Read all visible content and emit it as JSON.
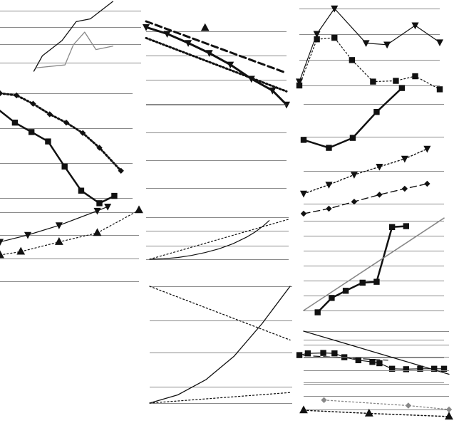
{
  "colors": {
    "background": "#ffffff",
    "gridline": "#8a8a8a",
    "ink": "#111111",
    "gray": "#888888"
  },
  "chart_data": [
    {
      "id": "p1",
      "type": "line",
      "grid": true,
      "ylim": [
        0,
        100
      ],
      "xlim": [
        0,
        5
      ],
      "gridlines": [
        12,
        39,
        63,
        87
      ],
      "series": [
        {
          "style": "solid",
          "color": "#111111",
          "width": 1.3,
          "marker": "none",
          "points": [
            [
              1.2,
              0
            ],
            [
              1.5,
              22
            ],
            [
              2.2,
              44
            ],
            [
              2.7,
              71
            ],
            [
              3.2,
              75
            ],
            [
              4.0,
              100
            ]
          ]
        },
        {
          "style": "solid",
          "color": "#888888",
          "width": 1.3,
          "marker": "none",
          "points": [
            [
              1.3,
              5
            ],
            [
              2.3,
              9
            ],
            [
              2.6,
              38
            ],
            [
              3.0,
              56
            ],
            [
              3.4,
              31
            ],
            [
              4.0,
              36
            ]
          ]
        }
      ]
    },
    {
      "id": "p2",
      "type": "line",
      "grid": true,
      "ylim": [
        0,
        100
      ],
      "xlim": [
        0,
        10
      ],
      "gridlines": [
        88,
        59,
        30,
        1
      ],
      "series": [
        {
          "style": "dashed",
          "color": "#111111",
          "width": 3,
          "marker": "none",
          "points": [
            [
              0,
              100
            ],
            [
              10,
              38
            ]
          ]
        },
        {
          "style": "solid",
          "color": "#111111",
          "width": 3,
          "marker": "triangle-down",
          "points": [
            [
              0,
              93
            ],
            [
              1.5,
              85
            ],
            [
              3,
              74
            ],
            [
              4.5,
              62
            ],
            [
              6,
              48
            ],
            [
              7.5,
              31
            ],
            [
              9,
              17
            ],
            [
              10,
              0
            ]
          ]
        },
        {
          "style": "dotted",
          "color": "#111111",
          "width": 3,
          "marker": "none",
          "points": [
            [
              0,
              80
            ],
            [
              10,
              16
            ]
          ]
        },
        {
          "style": "none",
          "color": "#111111",
          "width": 1,
          "marker": "triangle",
          "points": [
            [
              4.2,
              92
            ]
          ]
        }
      ]
    },
    {
      "id": "p3",
      "type": "line",
      "grid": true,
      "ylim": [
        0,
        100
      ],
      "xlim": [
        0,
        8
      ],
      "gridlines": [
        100,
        67,
        33,
        0
      ],
      "series": [
        {
          "style": "solid",
          "color": "#111111",
          "width": 1.2,
          "marker": "triangle-down",
          "points": [
            [
              0,
              5
            ],
            [
              1,
              67
            ],
            [
              2,
              100
            ],
            [
              3.8,
              55
            ],
            [
              5,
              53
            ],
            [
              6.6,
              78
            ],
            [
              8,
              56
            ]
          ]
        },
        {
          "style": "dotted",
          "color": "#111111",
          "width": 1.2,
          "marker": "square",
          "points": [
            [
              0,
              0
            ],
            [
              1,
              60
            ],
            [
              2,
              62
            ],
            [
              3,
              33
            ],
            [
              4.2,
              5
            ],
            [
              5.5,
              6
            ],
            [
              6.6,
              12
            ],
            [
              8,
              -5
            ]
          ]
        }
      ]
    },
    {
      "id": "p4",
      "type": "line",
      "grid": true,
      "ylim": [
        0,
        100
      ],
      "xlim": [
        0,
        8
      ],
      "gridlines": [
        100,
        67,
        33,
        0
      ],
      "series": [
        {
          "style": "dotted",
          "color": "#111111",
          "width": 3,
          "marker": "diamond",
          "points": [
            [
              0,
              100
            ],
            [
              1,
              98
            ],
            [
              2,
              90
            ],
            [
              3,
              80
            ],
            [
              4,
              72
            ],
            [
              5,
              62
            ],
            [
              6,
              48
            ],
            [
              7.3,
              26
            ]
          ]
        },
        {
          "style": "solid",
          "color": "#111111",
          "width": 2.5,
          "marker": "square",
          "points": [
            [
              -0.3,
              87
            ],
            [
              0.9,
              72
            ],
            [
              1.9,
              63
            ],
            [
              2.9,
              54
            ],
            [
              3.9,
              30
            ],
            [
              4.9,
              7
            ],
            [
              6,
              -5
            ],
            [
              6.9,
              2
            ]
          ]
        }
      ]
    },
    {
      "id": "p5",
      "type": "line",
      "grid": true,
      "ylim": [
        0,
        100
      ],
      "xlim": [
        0,
        10
      ],
      "gridlines": [
        100,
        67,
        33,
        0
      ],
      "series": []
    },
    {
      "id": "p6",
      "type": "line",
      "grid": true,
      "ylim": [
        0,
        100
      ],
      "xlim": [
        0,
        10
      ],
      "gridlines": [
        100,
        67,
        33,
        0
      ],
      "series": [
        {
          "style": "solid",
          "color": "#111111",
          "width": 2.5,
          "marker": "square",
          "points": [
            [
              0,
              64
            ],
            [
              1.8,
              56
            ],
            [
              3.5,
              66
            ],
            [
              5.2,
              92
            ],
            [
              7,
              116
            ]
          ]
        },
        {
          "style": "dotted",
          "color": "#111111",
          "width": 1.4,
          "marker": "triangle-down",
          "points": [
            [
              0,
              10
            ],
            [
              1.8,
              19
            ],
            [
              3.6,
              29
            ],
            [
              5.4,
              37
            ],
            [
              7.2,
              45
            ],
            [
              8.8,
              55
            ]
          ]
        },
        {
          "style": "dashed",
          "color": "#111111",
          "width": 1.4,
          "marker": "diamond",
          "points": [
            [
              0,
              -10
            ],
            [
              1.8,
              -5
            ],
            [
              3.6,
              2
            ],
            [
              5.4,
              9
            ],
            [
              7.2,
              15
            ],
            [
              8.8,
              20
            ]
          ]
        }
      ]
    },
    {
      "id": "p7",
      "type": "line",
      "grid": true,
      "ylim": [
        0,
        100
      ],
      "xlim": [
        0,
        8
      ],
      "gridlines": [
        0,
        33,
        67,
        100
      ],
      "series": [
        {
          "style": "solid",
          "color": "#111111",
          "width": 1.2,
          "marker": "triangle-down",
          "points": [
            [
              0,
              57
            ],
            [
              1.6,
              67
            ],
            [
              3.4,
              81
            ],
            [
              5.6,
              102
            ],
            [
              6.2,
              108
            ]
          ]
        },
        {
          "style": "dotted",
          "color": "#111111",
          "width": 1.2,
          "marker": "triangle",
          "points": [
            [
              0,
              38
            ],
            [
              1.2,
              43
            ],
            [
              3.4,
              57
            ],
            [
              5.6,
              70
            ],
            [
              8,
              103
            ]
          ]
        }
      ]
    },
    {
      "id": "p8",
      "type": "line",
      "grid": true,
      "ylim": [
        0,
        100
      ],
      "xlim": [
        0,
        10
      ],
      "gridlines": [
        100,
        67,
        33,
        0
      ],
      "series": [
        {
          "style": "solid",
          "color": "#111111",
          "width": 1.2,
          "marker": "none",
          "points": [
            [
              0,
              0
            ],
            [
              1,
              1
            ],
            [
              2,
              4
            ],
            [
              3,
              9
            ],
            [
              4,
              16
            ],
            [
              5,
              25
            ],
            [
              6,
              37
            ],
            [
              7,
              53
            ],
            [
              7.6,
              65
            ],
            [
              8.2,
              80
            ],
            [
              8.6,
              92
            ]
          ]
        },
        {
          "style": "dotted",
          "color": "#111111",
          "width": 1.2,
          "marker": "none",
          "points": [
            [
              0,
              0
            ],
            [
              10,
              95
            ]
          ]
        }
      ]
    },
    {
      "id": "p9",
      "type": "line",
      "grid": true,
      "ylim": [
        0,
        100
      ],
      "xlim": [
        0,
        10
      ],
      "gridlines": [
        100,
        83,
        67,
        50,
        33,
        17,
        0
      ],
      "series": [
        {
          "style": "solid",
          "color": "#111111",
          "width": 2.5,
          "marker": "square",
          "points": [
            [
              1,
              -2
            ],
            [
              2,
              14
            ],
            [
              3,
              22
            ],
            [
              4.2,
              31
            ],
            [
              5.2,
              32
            ],
            [
              6.3,
              93
            ],
            [
              7.3,
              94
            ]
          ]
        },
        {
          "style": "solid",
          "color": "#888888",
          "width": 1.6,
          "marker": "none",
          "points": [
            [
              0,
              0
            ],
            [
              10,
              103
            ]
          ]
        }
      ]
    },
    {
      "id": "p10",
      "type": "line",
      "grid": true,
      "ylim": [
        0,
        100
      ],
      "xlim": [
        0,
        10
      ],
      "gridlines": [
        100,
        58,
        0
      ],
      "series": [
        {
          "style": "dashed",
          "color": "#111111",
          "width": 1.2,
          "marker": "none",
          "points": [
            [
              0,
              63
            ],
            [
              6,
              52
            ]
          ]
        },
        {
          "style": "solid",
          "color": "#111111",
          "width": 1.2,
          "marker": "square",
          "points": [
            [
              -0.3,
              64
            ],
            [
              0.3,
              68
            ],
            [
              1.4,
              69
            ],
            [
              2.2,
              68
            ],
            [
              2.9,
              59
            ],
            [
              3.9,
              52
            ],
            [
              4.9,
              48
            ],
            [
              5.4,
              45
            ],
            [
              6.3,
              32
            ],
            [
              7.3,
              31
            ],
            [
              8.3,
              32
            ],
            [
              9.3,
              32
            ],
            [
              10,
              32
            ]
          ]
        }
      ]
    },
    {
      "id": "p11",
      "type": "line",
      "grid": true,
      "ylim": [
        0,
        100
      ],
      "xlim": [
        0,
        10
      ],
      "gridlines": [
        100,
        71,
        43,
        14,
        0
      ],
      "series": [
        {
          "style": "dotted",
          "color": "#111111",
          "width": 1.3,
          "marker": "none",
          "points": [
            [
              0,
              100
            ],
            [
              10,
              54
            ]
          ]
        },
        {
          "style": "solid",
          "color": "#111111",
          "width": 1.3,
          "marker": "none",
          "points": [
            [
              0,
              0
            ],
            [
              2,
              7
            ],
            [
              4,
              20
            ],
            [
              6,
              40
            ],
            [
              8,
              68
            ],
            [
              10,
              100
            ]
          ]
        },
        {
          "style": "dotted",
          "color": "#111111",
          "width": 1.3,
          "marker": "none",
          "points": [
            [
              0,
              0
            ],
            [
              10,
              9
            ]
          ]
        }
      ]
    },
    {
      "id": "p12",
      "type": "line",
      "grid": true,
      "ylim": [
        0,
        100
      ],
      "xlim": [
        0,
        10
      ],
      "gridlines": [
        100,
        83,
        67,
        50,
        33,
        17,
        0
      ],
      "series": [
        {
          "style": "solid",
          "color": "#111111",
          "width": 1.3,
          "marker": "none",
          "points": [
            [
              0,
              100
            ],
            [
              10,
              45
            ]
          ]
        },
        {
          "style": "dotted",
          "color": "#888888",
          "width": 1.3,
          "marker": "diamond-gray",
          "points": [
            [
              1.4,
              12
            ],
            [
              7.2,
              5
            ],
            [
              10,
              0
            ]
          ]
        },
        {
          "style": "dotted",
          "color": "#111111",
          "width": 1.5,
          "marker": "triangle",
          "points": [
            [
              0,
              -1
            ],
            [
              4.5,
              -5
            ],
            [
              10,
              -9
            ]
          ]
        }
      ]
    }
  ]
}
